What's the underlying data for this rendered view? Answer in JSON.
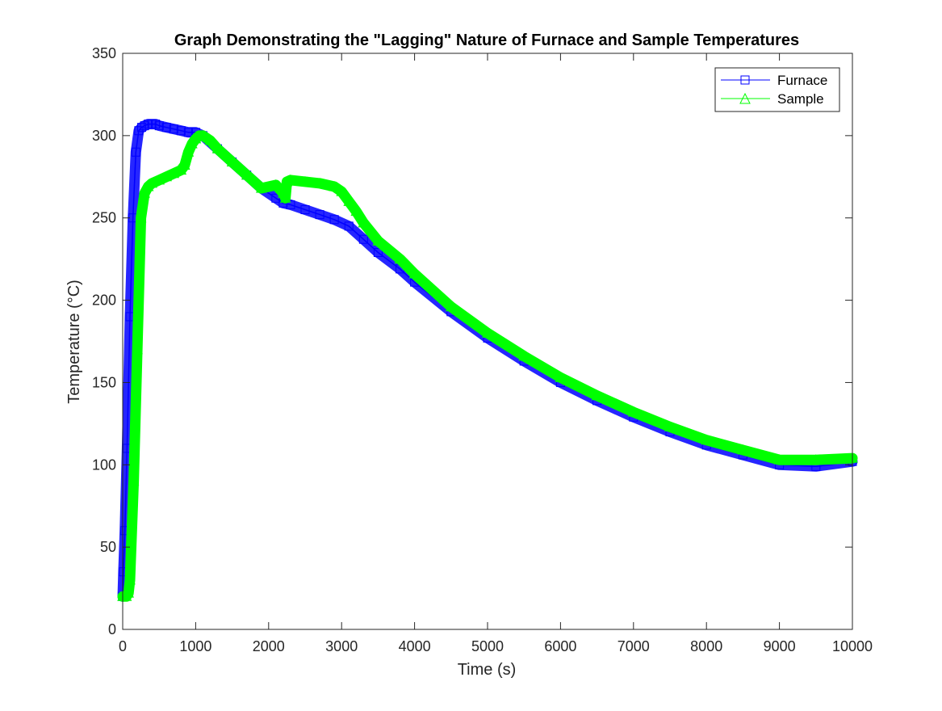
{
  "chart_data": {
    "type": "line",
    "title": "Graph Demonstrating the \"Lagging\" Nature of Furnace and Sample Temperatures",
    "xlabel": "Time (s)",
    "ylabel": "Temperature (°C)",
    "xlim": [
      0,
      10000
    ],
    "ylim": [
      0,
      350
    ],
    "xticks": [
      0,
      1000,
      2000,
      3000,
      4000,
      5000,
      6000,
      7000,
      8000,
      9000,
      10000
    ],
    "yticks": [
      0,
      50,
      100,
      150,
      200,
      250,
      300,
      350
    ],
    "grid": false,
    "legend_position": "top-right",
    "series": [
      {
        "name": "Furnace",
        "color": "#0000ff",
        "marker": "square",
        "x": [
          0,
          10,
          30,
          60,
          100,
          140,
          180,
          220,
          260,
          300,
          350,
          400,
          450,
          500,
          600,
          700,
          800,
          900,
          1000,
          1100,
          1300,
          1500,
          1700,
          1900,
          2100,
          2200,
          2300,
          2500,
          2700,
          2900,
          3100,
          3300,
          3500,
          3800,
          4000,
          4500,
          5000,
          5500,
          6000,
          6500,
          7000,
          7500,
          8000,
          8500,
          9000,
          9500,
          10000
        ],
        "y": [
          20,
          35,
          60,
          110,
          190,
          250,
          290,
          303,
          305,
          306,
          307,
          307,
          307,
          306,
          305,
          304,
          303,
          302,
          302,
          300,
          292,
          284,
          276,
          268,
          262,
          259,
          258,
          255,
          252,
          249,
          245,
          237,
          229,
          219,
          211,
          193,
          177,
          163,
          150,
          139,
          129,
          120,
          112,
          106,
          100,
          99,
          102
        ]
      },
      {
        "name": "Sample",
        "color": "#00ff00",
        "marker": "triangle",
        "x": [
          0,
          50,
          80,
          100,
          150,
          200,
          250,
          300,
          350,
          400,
          500,
          600,
          700,
          800,
          850,
          900,
          950,
          1000,
          1050,
          1100,
          1200,
          1300,
          1500,
          1700,
          1900,
          2100,
          2200,
          2230,
          2250,
          2300,
          2500,
          2700,
          2900,
          3000,
          3100,
          3200,
          3300,
          3500,
          3800,
          4000,
          4500,
          5000,
          5500,
          6000,
          6500,
          7000,
          7500,
          8000,
          8500,
          9000,
          9500,
          10000
        ],
        "y": [
          20,
          20,
          22,
          30,
          90,
          170,
          250,
          265,
          269,
          271,
          273,
          275,
          277,
          279,
          282,
          290,
          295,
          298,
          300,
          300,
          297,
          292,
          284,
          276,
          268,
          270,
          265,
          262,
          272,
          273,
          272,
          271,
          269,
          266,
          260,
          254,
          247,
          236,
          225,
          216,
          196,
          180,
          166,
          153,
          142,
          132,
          123,
          115,
          109,
          103,
          103,
          104
        ]
      }
    ]
  }
}
